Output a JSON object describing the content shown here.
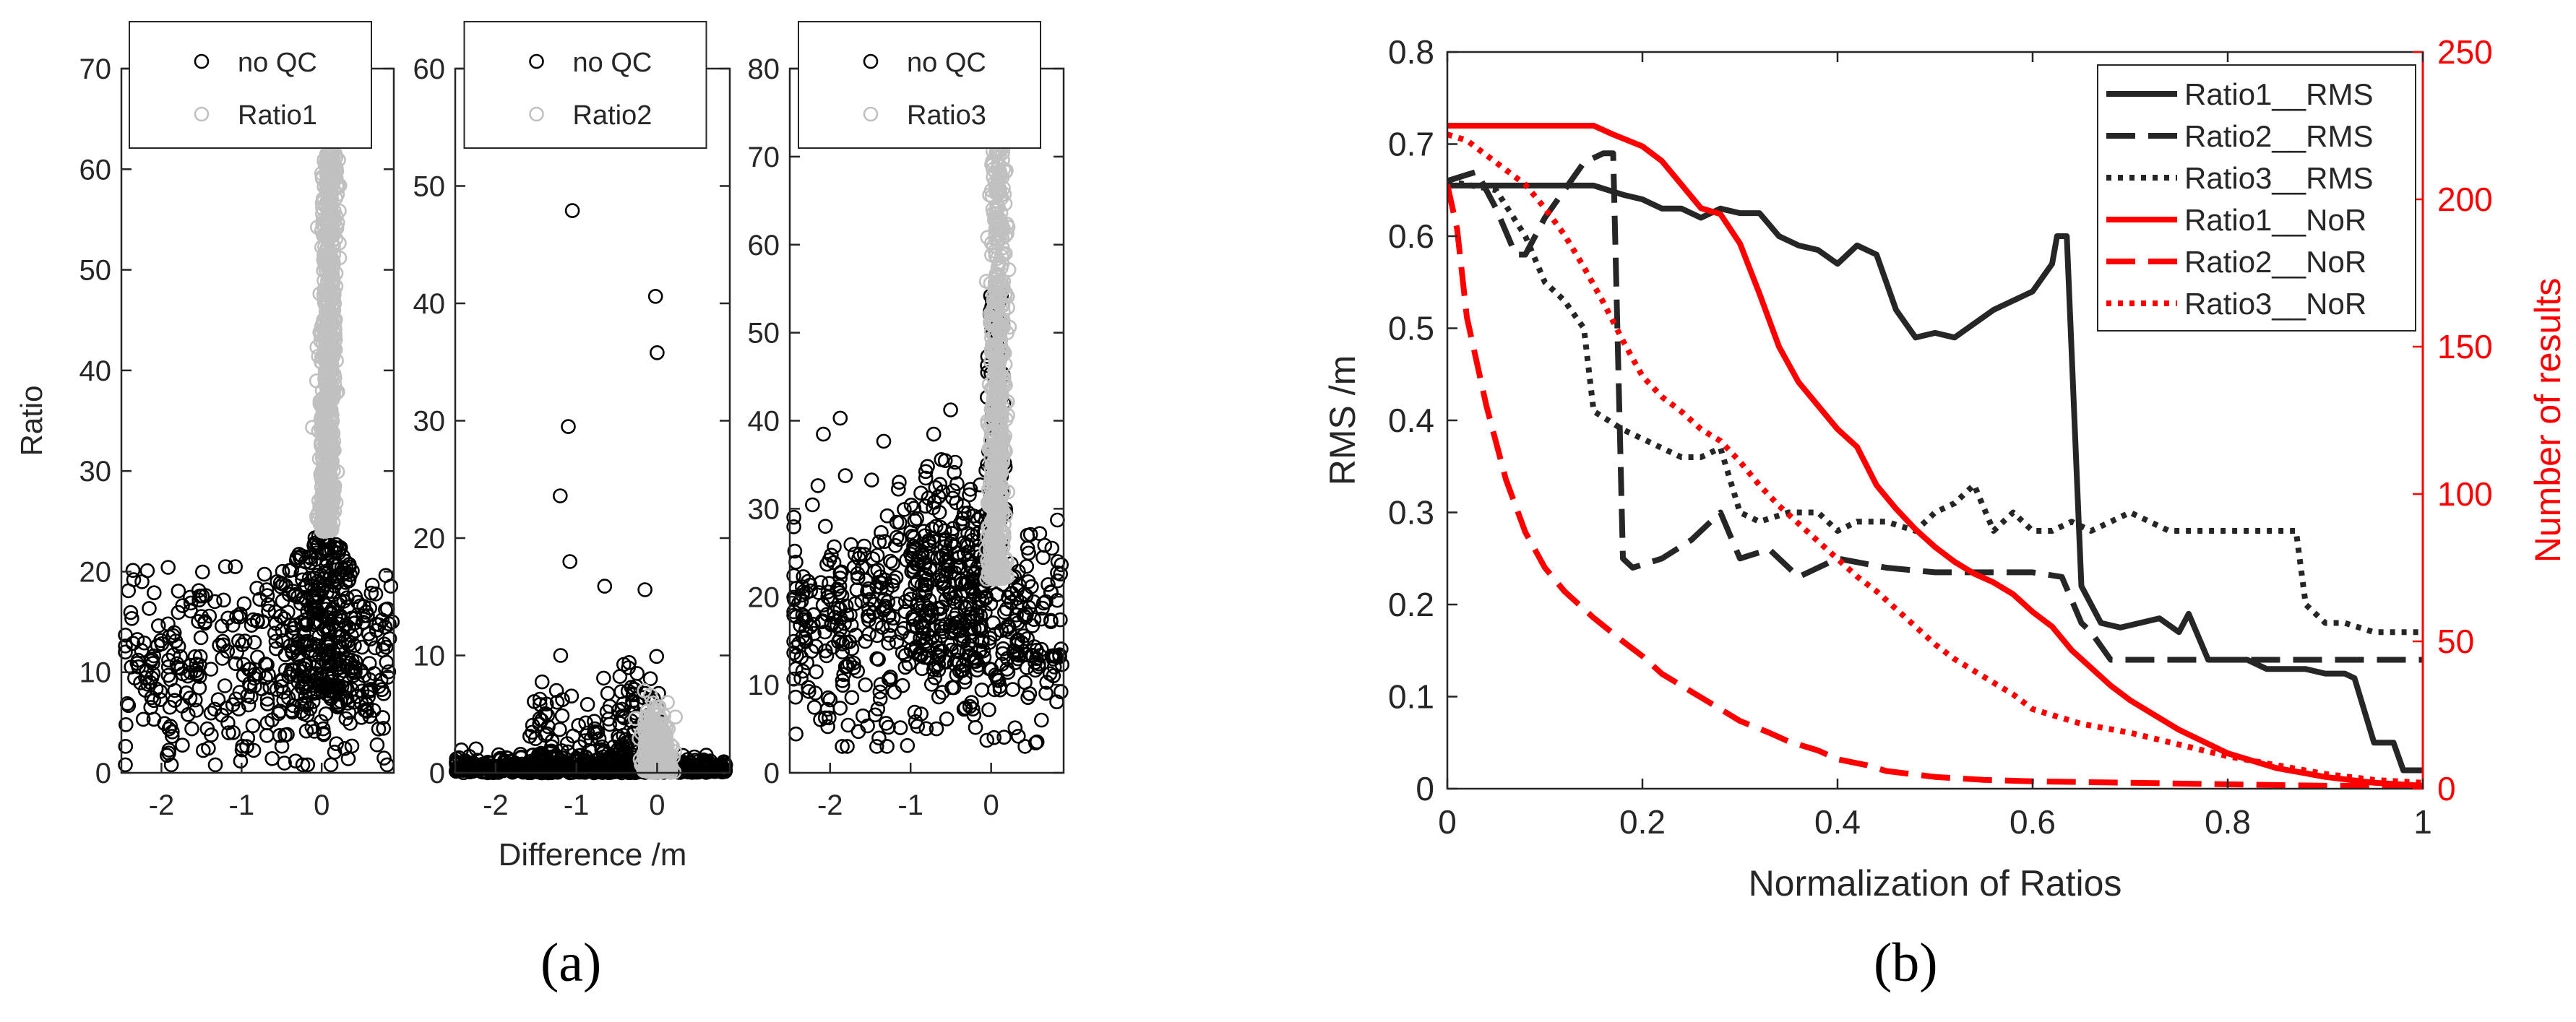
{
  "figure": {
    "panel_labels": [
      "(a)",
      "(b)"
    ]
  },
  "colors": {
    "noqc": "#000000",
    "ratio_gray": "#c0c0c0",
    "rms": "#262626",
    "nor": "#ff0000"
  },
  "chart_data": [
    {
      "type": "scatter",
      "title": "",
      "xlabel": "",
      "ylabel": "Ratio",
      "xlim": [
        -2.5,
        0.9
      ],
      "ylim": [
        0,
        70
      ],
      "xticks": [
        -2,
        -1,
        0
      ],
      "yticks": [
        0,
        10,
        20,
        30,
        40,
        50,
        60,
        70
      ],
      "legend": [
        "no QC",
        "Ratio1"
      ],
      "legend_position": "top-center",
      "series": [
        {
          "name": "no QC",
          "description": "scattered points; x from -2.5 to 0.9, ratio 1 to 24, concentrated near x=0"
        },
        {
          "name": "Ratio1",
          "description": "dense column at x about 0 to 0.15, ratio 24 to 62"
        }
      ]
    },
    {
      "type": "scatter",
      "title": "",
      "xlabel": "Difference /m",
      "ylabel": "",
      "xlim": [
        -2.5,
        0.9
      ],
      "ylim": [
        0,
        60
      ],
      "xticks": [
        -2,
        -1,
        0
      ],
      "yticks": [
        0,
        10,
        20,
        30,
        40,
        50,
        60
      ],
      "legend": [
        "no QC",
        "Ratio2"
      ],
      "legend_position": "top-center",
      "series": [
        {
          "name": "no QC",
          "description": "mostly ratio below 12 with outliers",
          "outliers": [
            [
              -1.05,
              47.9
            ],
            [
              -0.02,
              40.6
            ],
            [
              0.0,
              35.8
            ],
            [
              -1.1,
              29.5
            ],
            [
              -1.2,
              23.6
            ],
            [
              -1.08,
              18.0
            ],
            [
              -0.15,
              15.6
            ],
            [
              -0.65,
              15.9
            ]
          ]
        },
        {
          "name": "Ratio2",
          "description": "cluster at x about 0, ratio 0 to 7"
        }
      ]
    },
    {
      "type": "scatter",
      "title": "",
      "xlabel": "",
      "ylabel": "",
      "xlim": [
        -2.5,
        0.9
      ],
      "ylim": [
        0,
        80
      ],
      "xticks": [
        -2,
        -1,
        0
      ],
      "yticks": [
        0,
        10,
        20,
        30,
        40,
        50,
        60,
        70,
        80
      ],
      "legend": [
        "no QC",
        "Ratio3"
      ],
      "legend_position": "top-center",
      "series": [
        {
          "name": "no QC",
          "description": "broad cloud x -2.5 to 0.9, ratio 3 to 42"
        },
        {
          "name": "Ratio3",
          "description": "column at x about 0 to 0.15, ratio 22 to 80"
        }
      ]
    },
    {
      "type": "line",
      "title": "",
      "xlabel": "Normalization of Ratios",
      "ylabel": "RMS /m",
      "ylabel_right": "Number of results",
      "xlim": [
        0,
        1
      ],
      "ylim": [
        0,
        0.8
      ],
      "ylim_right": [
        0,
        250
      ],
      "xticks": [
        0,
        0.2,
        0.4,
        0.6,
        0.8,
        1
      ],
      "xtick_labels": [
        "0",
        "0.2",
        "0.4",
        "0.6",
        "0.8",
        "1"
      ],
      "yticks": [
        0,
        0.1,
        0.2,
        0.3,
        0.4,
        0.5,
        0.6,
        0.7,
        0.8
      ],
      "ytick_labels": [
        "0",
        "0.1",
        "0.2",
        "0.3",
        "0.4",
        "0.5",
        "0.6",
        "0.7",
        "0.8"
      ],
      "yticks_right": [
        0,
        50,
        100,
        150,
        200,
        250
      ],
      "ytick_labels_right": [
        "0",
        "50",
        "100",
        "150",
        "200",
        "250"
      ],
      "legend_position": "top-right",
      "series": [
        {
          "name": "Ratio1__RMS",
          "axis": "left",
          "style": "solid",
          "color": "#262626",
          "x": [
            0,
            0.15,
            0.18,
            0.2,
            0.22,
            0.24,
            0.26,
            0.28,
            0.3,
            0.32,
            0.34,
            0.36,
            0.38,
            0.4,
            0.42,
            0.44,
            0.46,
            0.48,
            0.5,
            0.52,
            0.54,
            0.56,
            0.58,
            0.6,
            0.62,
            0.625,
            0.635,
            0.65,
            0.67,
            0.69,
            0.71,
            0.73,
            0.75,
            0.76,
            0.78,
            0.8,
            0.82,
            0.84,
            0.86,
            0.88,
            0.9,
            0.92,
            0.93,
            0.95,
            0.97,
            0.98,
            1
          ],
          "y": [
            0.655,
            0.655,
            0.645,
            0.64,
            0.63,
            0.63,
            0.62,
            0.63,
            0.625,
            0.625,
            0.6,
            0.59,
            0.585,
            0.57,
            0.59,
            0.58,
            0.52,
            0.49,
            0.495,
            0.49,
            0.505,
            0.52,
            0.53,
            0.54,
            0.57,
            0.6,
            0.6,
            0.22,
            0.18,
            0.175,
            0.18,
            0.185,
            0.17,
            0.19,
            0.14,
            0.14,
            0.14,
            0.13,
            0.13,
            0.13,
            0.125,
            0.125,
            0.12,
            0.05,
            0.05,
            0.02,
            0.02
          ]
        },
        {
          "name": "Ratio2__RMS",
          "axis": "left",
          "style": "dashed",
          "color": "#262626",
          "x": [
            0,
            0.03,
            0.05,
            0.07,
            0.08,
            0.1,
            0.12,
            0.14,
            0.16,
            0.17,
            0.18,
            0.19,
            0.22,
            0.25,
            0.28,
            0.3,
            0.33,
            0.36,
            0.4,
            0.45,
            0.5,
            0.55,
            0.6,
            0.63,
            0.65,
            0.66,
            0.68,
            0.75,
            0.85,
            1
          ],
          "y": [
            0.66,
            0.67,
            0.63,
            0.58,
            0.58,
            0.62,
            0.65,
            0.68,
            0.69,
            0.69,
            0.25,
            0.24,
            0.25,
            0.27,
            0.3,
            0.25,
            0.26,
            0.23,
            0.25,
            0.24,
            0.235,
            0.235,
            0.235,
            0.23,
            0.18,
            0.17,
            0.14,
            0.14,
            0.14,
            0.14
          ]
        },
        {
          "name": "Ratio3__RMS",
          "axis": "left",
          "style": "dotted",
          "color": "#262626",
          "x": [
            0,
            0.05,
            0.08,
            0.1,
            0.12,
            0.14,
            0.15,
            0.18,
            0.2,
            0.22,
            0.24,
            0.26,
            0.28,
            0.3,
            0.32,
            0.35,
            0.38,
            0.4,
            0.42,
            0.45,
            0.48,
            0.5,
            0.52,
            0.54,
            0.56,
            0.58,
            0.6,
            0.62,
            0.64,
            0.66,
            0.68,
            0.7,
            0.72,
            0.74,
            0.76,
            0.8,
            0.84,
            0.87,
            0.88,
            0.9,
            0.92,
            0.95,
            1
          ],
          "y": [
            0.66,
            0.65,
            0.6,
            0.55,
            0.53,
            0.5,
            0.41,
            0.39,
            0.38,
            0.37,
            0.36,
            0.36,
            0.37,
            0.3,
            0.29,
            0.3,
            0.3,
            0.28,
            0.29,
            0.29,
            0.28,
            0.3,
            0.31,
            0.33,
            0.28,
            0.3,
            0.28,
            0.28,
            0.29,
            0.28,
            0.29,
            0.3,
            0.29,
            0.28,
            0.28,
            0.28,
            0.28,
            0.28,
            0.2,
            0.18,
            0.18,
            0.17,
            0.17
          ]
        },
        {
          "name": "Ratio1__NoR",
          "axis": "right",
          "style": "solid",
          "color": "#ff0000",
          "x": [
            0,
            0.05,
            0.1,
            0.15,
            0.17,
            0.2,
            0.22,
            0.24,
            0.26,
            0.28,
            0.3,
            0.32,
            0.34,
            0.36,
            0.38,
            0.4,
            0.42,
            0.44,
            0.46,
            0.48,
            0.5,
            0.52,
            0.54,
            0.56,
            0.58,
            0.6,
            0.62,
            0.64,
            0.66,
            0.68,
            0.7,
            0.72,
            0.75,
            0.8,
            0.85,
            0.9,
            0.95,
            1
          ],
          "y": [
            225,
            225,
            225,
            225,
            222,
            218,
            213,
            205,
            197,
            195,
            185,
            168,
            150,
            138,
            130,
            122,
            116,
            103,
            95,
            88,
            82,
            77,
            73,
            70,
            66,
            60,
            55,
            47,
            41,
            35,
            30,
            26,
            20,
            12,
            7,
            4,
            2,
            1
          ]
        },
        {
          "name": "Ratio2__NoR",
          "axis": "right",
          "style": "dashed",
          "color": "#ff0000",
          "x": [
            0,
            0.01,
            0.02,
            0.04,
            0.06,
            0.08,
            0.1,
            0.12,
            0.15,
            0.18,
            0.2,
            0.22,
            0.25,
            0.28,
            0.3,
            0.33,
            0.35,
            0.38,
            0.4,
            0.43,
            0.45,
            0.5,
            0.55,
            0.6,
            0.7,
            0.8,
            0.9,
            1
          ],
          "y": [
            205,
            190,
            160,
            130,
            105,
            87,
            75,
            67,
            58,
            50,
            45,
            39,
            33,
            27,
            23,
            19,
            16,
            13,
            10,
            8,
            6,
            4,
            3,
            2.5,
            2,
            1.5,
            1,
            1
          ]
        },
        {
          "name": "Ratio3__NoR",
          "axis": "right",
          "style": "dotted",
          "color": "#ff0000",
          "x": [
            0,
            0.02,
            0.04,
            0.06,
            0.08,
            0.1,
            0.12,
            0.14,
            0.16,
            0.18,
            0.2,
            0.22,
            0.24,
            0.26,
            0.28,
            0.3,
            0.32,
            0.34,
            0.36,
            0.38,
            0.4,
            0.42,
            0.44,
            0.46,
            0.48,
            0.5,
            0.52,
            0.55,
            0.58,
            0.6,
            0.65,
            0.7,
            0.75,
            0.8,
            0.85,
            0.9,
            0.95,
            1
          ],
          "y": [
            222,
            220,
            215,
            210,
            205,
            197,
            188,
            177,
            165,
            152,
            140,
            133,
            128,
            122,
            118,
            111,
            103,
            96,
            90,
            84,
            78,
            72,
            67,
            61,
            55,
            49,
            44,
            38,
            32,
            27,
            22,
            19,
            15,
            11,
            8,
            5,
            3,
            2
          ]
        }
      ]
    }
  ]
}
